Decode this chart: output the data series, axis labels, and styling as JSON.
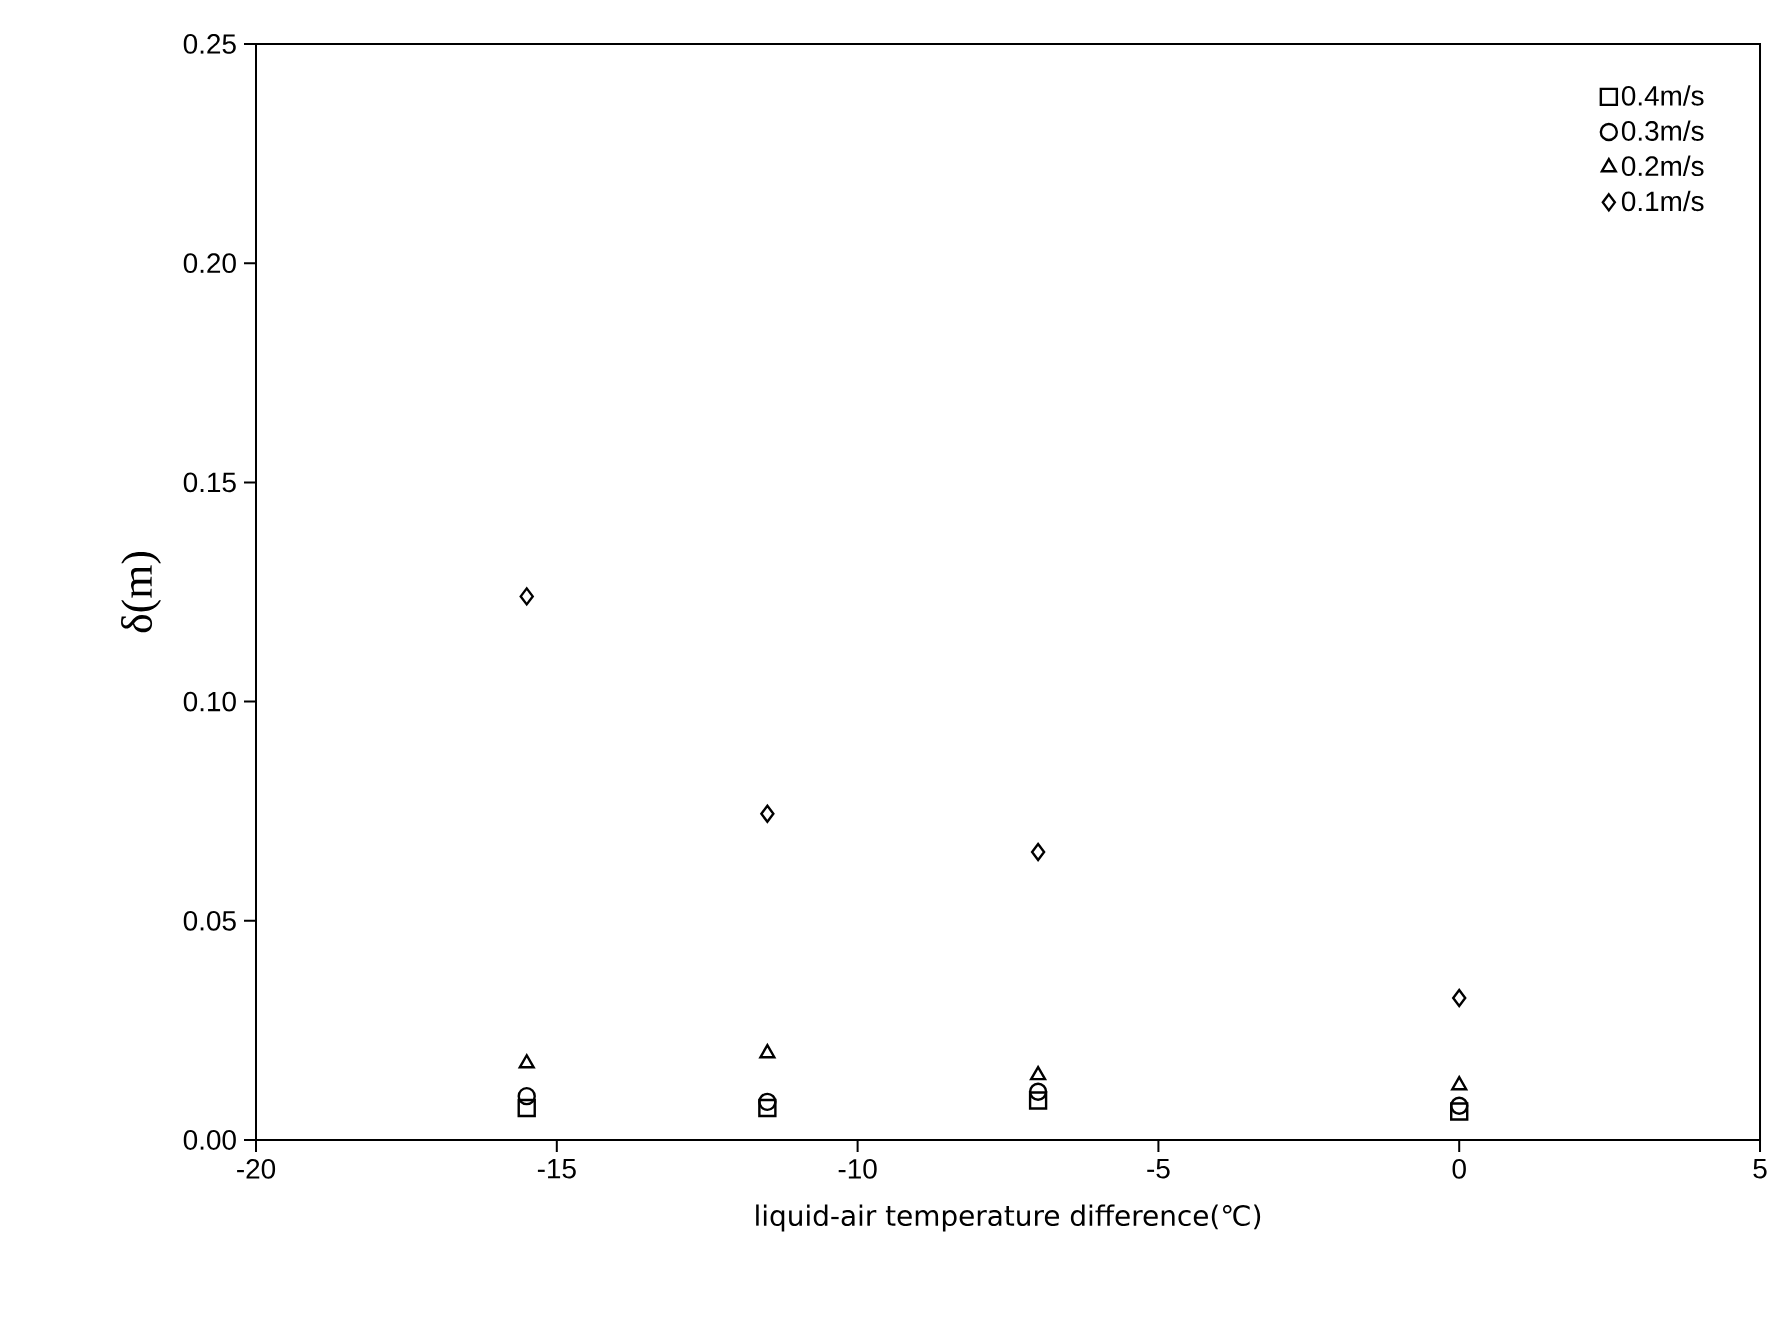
{
  "chart_data": {
    "type": "scatter",
    "xlabel": "liquid-air temperature difference(℃)",
    "ylabel": "δ(m)",
    "x": [
      -15.5,
      -11.5,
      -7,
      0
    ],
    "series": [
      {
        "name": "0.4m/s",
        "color": "#000000",
        "marker": "square",
        "values": [
          0.0073,
          0.0073,
          0.009,
          0.0065
        ]
      },
      {
        "name": "0.3m/s",
        "color": "#000000",
        "marker": "circle",
        "values": [
          0.01,
          0.0087,
          0.011,
          0.0078
        ]
      },
      {
        "name": "0.2m/s",
        "color": "#000000",
        "marker": "triangle",
        "values": [
          0.0175,
          0.0198,
          0.0148,
          0.0125
        ]
      },
      {
        "name": "0.1m/s",
        "color": "#000000",
        "marker": "diamond",
        "values": [
          0.124,
          0.0744,
          0.0657,
          0.0324
        ]
      }
    ],
    "xlim": [
      -20,
      5
    ],
    "xticks": [
      -20,
      -15,
      -10,
      -5,
      0,
      5
    ],
    "ylim": [
      0,
      0.25
    ],
    "yticks": [
      {
        "value": 0,
        "label": "0.00"
      },
      {
        "value": 0.05,
        "label": "0.05"
      },
      {
        "value": 0.1,
        "label": "0.10"
      },
      {
        "value": 0.15,
        "label": "0.15"
      },
      {
        "value": 0.2,
        "label": "0.20"
      },
      {
        "value": 0.25,
        "label": "0.25"
      }
    ],
    "legend": "top right",
    "grid": false
  }
}
